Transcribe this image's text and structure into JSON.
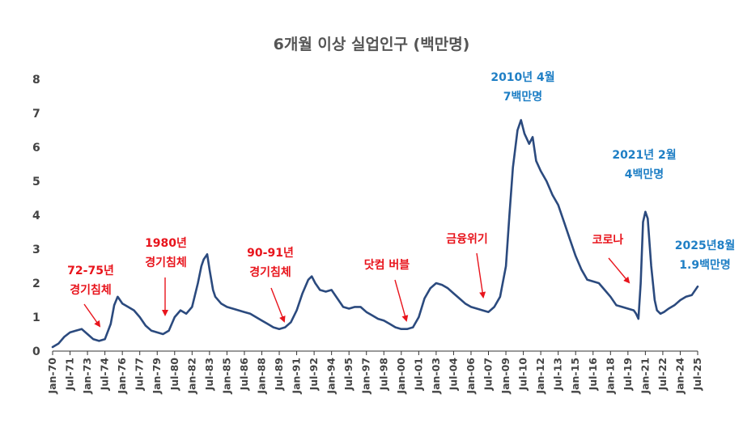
{
  "chart_data": {
    "type": "line",
    "title": "6개월 이상 실업인구 (백만명)",
    "xlabel": "",
    "ylabel": "",
    "ylim": [
      0,
      8
    ],
    "yticks": [
      0,
      1,
      2,
      3,
      4,
      5,
      6,
      7,
      8
    ],
    "grid": false,
    "line_color": "#2b4a7e",
    "xticks": [
      "Jan-70",
      "Jul-71",
      "Jan-73",
      "Jul-74",
      "Jan-76",
      "Jul-77",
      "Jan-79",
      "Jul-80",
      "Jan-82",
      "Jul-83",
      "Jan-85",
      "Jul-86",
      "Jan-88",
      "Jul-89",
      "Jan-91",
      "Jul-92",
      "Jan-94",
      "Jul-95",
      "Jan-97",
      "Jul-98",
      "Jan-00",
      "Jul-01",
      "Jan-03",
      "Jul-04",
      "Jan-06",
      "Jul-07",
      "Jan-09",
      "Jul-10",
      "Jan-12",
      "Jul-13",
      "Jan-15",
      "Jul-16",
      "Jan-18",
      "Jul-19",
      "Jan-21",
      "Jul-22",
      "Jan-24",
      "Jul-25"
    ],
    "series": [
      {
        "name": "6개월 이상 실업인구",
        "x": [
          1970.0,
          1970.5,
          1971.0,
          1971.5,
          1972.0,
          1972.5,
          1973.0,
          1973.5,
          1974.0,
          1974.5,
          1975.0,
          1975.3,
          1975.6,
          1976.0,
          1976.5,
          1977.0,
          1977.5,
          1978.0,
          1978.5,
          1979.0,
          1979.5,
          1980.0,
          1980.5,
          1981.0,
          1981.5,
          1982.0,
          1982.5,
          1982.8,
          1983.0,
          1983.3,
          1983.5,
          1983.8,
          1984.0,
          1984.5,
          1985.0,
          1985.5,
          1986.0,
          1986.5,
          1987.0,
          1987.5,
          1988.0,
          1988.5,
          1989.0,
          1989.5,
          1990.0,
          1990.5,
          1991.0,
          1991.5,
          1992.0,
          1992.3,
          1992.6,
          1993.0,
          1993.5,
          1994.0,
          1994.5,
          1995.0,
          1995.5,
          1996.0,
          1996.5,
          1997.0,
          1997.5,
          1998.0,
          1998.5,
          1999.0,
          1999.5,
          2000.0,
          2000.5,
          2001.0,
          2001.5,
          2002.0,
          2002.5,
          2003.0,
          2003.5,
          2004.0,
          2004.5,
          2005.0,
          2005.5,
          2006.0,
          2006.5,
          2007.0,
          2007.5,
          2008.0,
          2008.5,
          2009.0,
          2009.3,
          2009.6,
          2010.0,
          2010.3,
          2010.6,
          2011.0,
          2011.3,
          2011.6,
          2012.0,
          2012.5,
          2013.0,
          2013.5,
          2014.0,
          2014.5,
          2015.0,
          2015.5,
          2016.0,
          2016.5,
          2017.0,
          2017.5,
          2018.0,
          2018.5,
          2019.0,
          2019.5,
          2020.0,
          2020.2,
          2020.4,
          2020.6,
          2020.8,
          2021.0,
          2021.2,
          2021.5,
          2021.8,
          2022.0,
          2022.3,
          2022.6,
          2023.0,
          2023.5,
          2024.0,
          2024.5,
          2025.0,
          2025.5
        ],
        "values": [
          0.12,
          0.22,
          0.42,
          0.55,
          0.6,
          0.65,
          0.5,
          0.35,
          0.3,
          0.35,
          0.8,
          1.35,
          1.6,
          1.4,
          1.3,
          1.2,
          1.0,
          0.75,
          0.6,
          0.55,
          0.5,
          0.6,
          1.0,
          1.2,
          1.1,
          1.3,
          2.0,
          2.5,
          2.7,
          2.85,
          2.4,
          1.8,
          1.6,
          1.4,
          1.3,
          1.25,
          1.2,
          1.15,
          1.1,
          1.0,
          0.9,
          0.8,
          0.7,
          0.65,
          0.7,
          0.85,
          1.2,
          1.7,
          2.1,
          2.2,
          2.0,
          1.8,
          1.75,
          1.8,
          1.55,
          1.3,
          1.25,
          1.3,
          1.3,
          1.15,
          1.05,
          0.95,
          0.9,
          0.8,
          0.7,
          0.65,
          0.65,
          0.7,
          1.0,
          1.55,
          1.85,
          2.0,
          1.95,
          1.85,
          1.7,
          1.55,
          1.4,
          1.3,
          1.25,
          1.2,
          1.15,
          1.3,
          1.6,
          2.5,
          4.0,
          5.4,
          6.5,
          6.8,
          6.4,
          6.1,
          6.3,
          5.6,
          5.3,
          5.0,
          4.6,
          4.3,
          3.8,
          3.3,
          2.8,
          2.4,
          2.1,
          2.05,
          2.0,
          1.8,
          1.6,
          1.35,
          1.3,
          1.25,
          1.2,
          1.1,
          0.95,
          2.0,
          3.8,
          4.1,
          3.9,
          2.5,
          1.5,
          1.2,
          1.1,
          1.15,
          1.25,
          1.35,
          1.5,
          1.6,
          1.65,
          1.9
        ]
      }
    ],
    "annotations": [
      {
        "lines": [
          "72-75년",
          "경기침체"
        ],
        "color": "red",
        "arrow_to": [
          1974.3,
          0.38
        ]
      },
      {
        "lines": [
          "1980년",
          "경기침체"
        ],
        "color": "red",
        "arrow_to": [
          1979.8,
          0.55
        ]
      },
      {
        "lines": [
          "90-91년",
          "경기침체"
        ],
        "color": "red",
        "arrow_to": [
          1990.0,
          0.9
        ]
      },
      {
        "lines": [
          "닷컴 버블"
        ],
        "color": "red",
        "arrow_to": [
          2000.1,
          0.95
        ]
      },
      {
        "lines": [
          "금융위기"
        ],
        "color": "red",
        "arrow_to": [
          2007.2,
          1.6
        ]
      },
      {
        "lines": [
          "코로나"
        ],
        "color": "red",
        "arrow_to": [
          2019.8,
          2.0
        ]
      },
      {
        "lines": [
          "2010년 4월",
          "7백만명"
        ],
        "color": "blue",
        "arrow_to": null
      },
      {
        "lines": [
          "2021년 2월",
          "4백만명"
        ],
        "color": "blue",
        "arrow_to": null
      },
      {
        "lines": [
          "2025년8월",
          "1.9백만명"
        ],
        "color": "blue",
        "arrow_to": null
      }
    ]
  }
}
